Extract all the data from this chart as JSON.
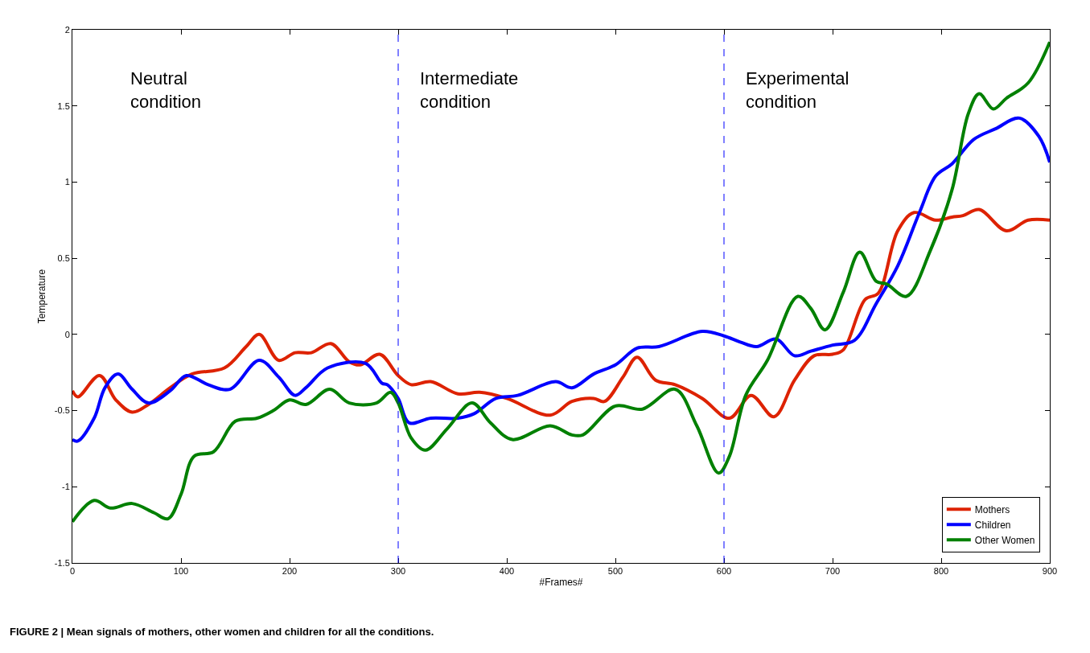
{
  "chart_data": {
    "type": "line",
    "xlabel": "#Frames#",
    "ylabel": "Temperature",
    "xlim": [
      0,
      900
    ],
    "xticks": [
      0,
      100,
      200,
      300,
      400,
      500,
      600,
      700,
      800,
      900
    ],
    "ylim": [
      -1.5,
      2
    ],
    "yticks": [
      -1.5,
      -1,
      -0.5,
      0,
      0.5,
      1,
      1.5,
      2
    ],
    "legend": "bottom right",
    "line_style": "solid",
    "marker": "none",
    "ref_lines": [
      {
        "axis": "x",
        "value": 300,
        "color": "#0000ff",
        "line_style": "dashed"
      },
      {
        "axis": "x",
        "value": 600,
        "color": "#0000ff",
        "line_style": "dashed"
      }
    ],
    "annotations": [
      "Neutral\ncondition",
      "Intermediate\ncondition",
      "Experimental\ncondition",
      "FIGURE 2 | Mean signals of mothers, other women and children for all the conditions."
    ],
    "series": [
      {
        "name": "Mothers",
        "color": "#dd2200",
        "x": [
          0,
          5,
          25,
          40,
          55,
          70,
          90,
          110,
          140,
          160,
          172,
          190,
          205,
          220,
          238,
          255,
          265,
          283,
          300,
          312,
          330,
          355,
          375,
          400,
          440,
          460,
          480,
          490,
          507,
          520,
          537,
          555,
          580,
          605,
          625,
          646,
          665,
          683,
          700,
          710,
          730,
          742,
          760,
          775,
          795,
          810,
          820,
          835,
          860,
          880,
          900
        ],
        "values": [
          -0.37,
          -0.41,
          -0.27,
          -0.43,
          -0.51,
          -0.46,
          -0.35,
          -0.26,
          -0.22,
          -0.08,
          0.0,
          -0.17,
          -0.12,
          -0.12,
          -0.06,
          -0.18,
          -0.2,
          -0.13,
          -0.27,
          -0.33,
          -0.31,
          -0.39,
          -0.38,
          -0.42,
          -0.53,
          -0.44,
          -0.42,
          -0.44,
          -0.28,
          -0.15,
          -0.3,
          -0.33,
          -0.42,
          -0.55,
          -0.4,
          -0.54,
          -0.3,
          -0.14,
          -0.13,
          -0.1,
          0.23,
          0.27,
          0.68,
          0.8,
          0.75,
          0.77,
          0.78,
          0.82,
          0.68,
          0.75,
          0.75
        ]
      },
      {
        "name": "Children",
        "color": "#0000ff",
        "x": [
          0,
          5,
          20,
          30,
          42,
          55,
          70,
          90,
          105,
          125,
          145,
          172,
          190,
          205,
          215,
          235,
          270,
          285,
          290,
          300,
          310,
          330,
          355,
          370,
          390,
          410,
          445,
          460,
          480,
          500,
          520,
          540,
          580,
          600,
          615,
          630,
          648,
          665,
          680,
          700,
          720,
          740,
          760,
          780,
          795,
          810,
          830,
          850,
          872,
          890,
          900
        ],
        "values": [
          -0.69,
          -0.7,
          -0.55,
          -0.35,
          -0.26,
          -0.36,
          -0.45,
          -0.37,
          -0.27,
          -0.33,
          -0.36,
          -0.17,
          -0.28,
          -0.4,
          -0.35,
          -0.22,
          -0.19,
          -0.32,
          -0.33,
          -0.42,
          -0.58,
          -0.55,
          -0.55,
          -0.52,
          -0.42,
          -0.4,
          -0.31,
          -0.35,
          -0.26,
          -0.2,
          -0.09,
          -0.08,
          0.02,
          -0.01,
          -0.05,
          -0.08,
          -0.03,
          -0.14,
          -0.11,
          -0.07,
          -0.04,
          0.2,
          0.45,
          0.8,
          1.04,
          1.12,
          1.28,
          1.35,
          1.42,
          1.3,
          1.13
        ]
      },
      {
        "name": "Other Women",
        "color": "#008000",
        "x": [
          0,
          20,
          35,
          55,
          75,
          88,
          100,
          112,
          130,
          150,
          170,
          185,
          200,
          215,
          237,
          255,
          280,
          293,
          300,
          312,
          325,
          345,
          368,
          385,
          405,
          440,
          460,
          470,
          500,
          525,
          555,
          575,
          595,
          605,
          620,
          640,
          668,
          680,
          693,
          710,
          725,
          740,
          750,
          768,
          790,
          810,
          825,
          835,
          848,
          860,
          880,
          900
        ],
        "values": [
          -1.23,
          -1.09,
          -1.14,
          -1.11,
          -1.17,
          -1.21,
          -1.05,
          -0.8,
          -0.77,
          -0.57,
          -0.55,
          -0.5,
          -0.43,
          -0.46,
          -0.36,
          -0.45,
          -0.45,
          -0.38,
          -0.45,
          -0.68,
          -0.76,
          -0.62,
          -0.45,
          -0.58,
          -0.69,
          -0.6,
          -0.66,
          -0.66,
          -0.47,
          -0.49,
          -0.36,
          -0.6,
          -0.91,
          -0.8,
          -0.4,
          -0.17,
          0.25,
          0.17,
          0.03,
          0.28,
          0.54,
          0.35,
          0.33,
          0.25,
          0.55,
          0.95,
          1.45,
          1.58,
          1.48,
          1.55,
          1.65,
          1.92
        ]
      }
    ]
  }
}
